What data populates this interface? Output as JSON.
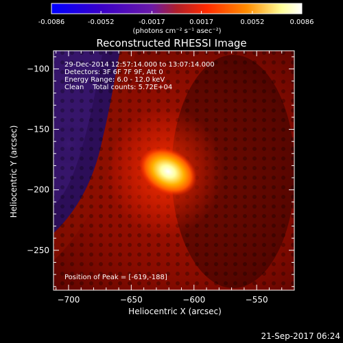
{
  "colorbar": {
    "ticks": [
      "-0.0086",
      "-0.0052",
      "-0.0017",
      "0.0017",
      "0.0052",
      "0.0086"
    ],
    "tick_values": [
      -0.0086,
      -0.0052,
      -0.0017,
      0.0017,
      0.0052,
      0.0086
    ],
    "range": [
      -0.0086,
      0.0086
    ],
    "unit_label": "(photons cm⁻² s⁻¹ asec⁻²)",
    "colormap": [
      "#0000ff",
      "#3a00c8",
      "#6a1aa8",
      "#b01f2a",
      "#ff2a00",
      "#ff8c00",
      "#ffff9a",
      "#ffffff"
    ]
  },
  "chart_data": {
    "type": "heatmap",
    "title": "Reconstructed RHESSI Image",
    "xlabel": "Heliocentric X (arcsec)",
    "ylabel": "Heliocentric Y (arcsec)",
    "xlim": [
      -712,
      -520
    ],
    "ylim": [
      -283,
      -85
    ],
    "x_ticks": [
      -700,
      -650,
      -600,
      -550
    ],
    "y_ticks": [
      -100,
      -150,
      -200,
      -250
    ],
    "x_tick_labels": [
      "−700",
      "−650",
      "−600",
      "−550"
    ],
    "y_tick_labels": [
      "−100",
      "−150",
      "−200",
      "−250"
    ],
    "peak": {
      "x": -619,
      "y": -188
    },
    "annotations": [
      "29-Dec-2014 12:57:14.000 to 13:07:14.000",
      "Detectors: 3F 6F 7F 9F, Att 0",
      "Energy Range: 6.0 - 12.0 keV",
      "Clean    Total counts: 5.72E+04"
    ],
    "peak_label": "Position of Peak = [-619,-188]"
  },
  "footer": {
    "timestamp": "21-Sep-2017 06:24"
  }
}
